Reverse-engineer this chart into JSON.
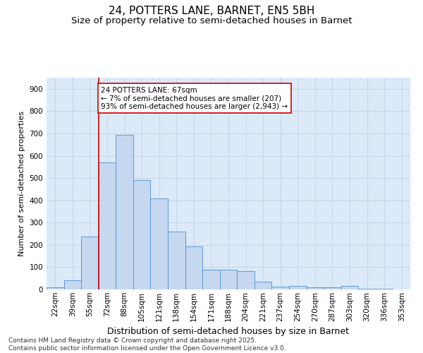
{
  "title": "24, POTTERS LANE, BARNET, EN5 5BH",
  "subtitle": "Size of property relative to semi-detached houses in Barnet",
  "xlabel": "Distribution of semi-detached houses by size in Barnet",
  "ylabel": "Number of semi-detached properties",
  "categories": [
    "22sqm",
    "39sqm",
    "55sqm",
    "72sqm",
    "88sqm",
    "105sqm",
    "121sqm",
    "138sqm",
    "154sqm",
    "171sqm",
    "188sqm",
    "204sqm",
    "221sqm",
    "237sqm",
    "254sqm",
    "270sqm",
    "287sqm",
    "303sqm",
    "320sqm",
    "336sqm",
    "353sqm"
  ],
  "values": [
    8,
    40,
    238,
    570,
    693,
    490,
    410,
    260,
    193,
    90,
    88,
    83,
    36,
    12,
    17,
    11,
    10,
    15,
    2,
    2,
    1
  ],
  "bar_color": "#c5d8f0",
  "bar_edge_color": "#5b9bd5",
  "grid_color": "#c8d4e8",
  "background_color": "#dce9f8",
  "vline_color": "#cc0000",
  "annotation_text": "24 POTTERS LANE: 67sqm\n← 7% of semi-detached houses are smaller (207)\n93% of semi-detached houses are larger (2,943) →",
  "annotation_box_color": "#cc0000",
  "ylim": [
    0,
    950
  ],
  "yticks": [
    0,
    100,
    200,
    300,
    400,
    500,
    600,
    700,
    800,
    900
  ],
  "footer": "Contains HM Land Registry data © Crown copyright and database right 2025.\nContains public sector information licensed under the Open Government Licence v3.0.",
  "title_fontsize": 11,
  "subtitle_fontsize": 9.5,
  "xlabel_fontsize": 9,
  "ylabel_fontsize": 8,
  "tick_fontsize": 7.5,
  "annotation_fontsize": 7.5,
  "footer_fontsize": 6.5
}
